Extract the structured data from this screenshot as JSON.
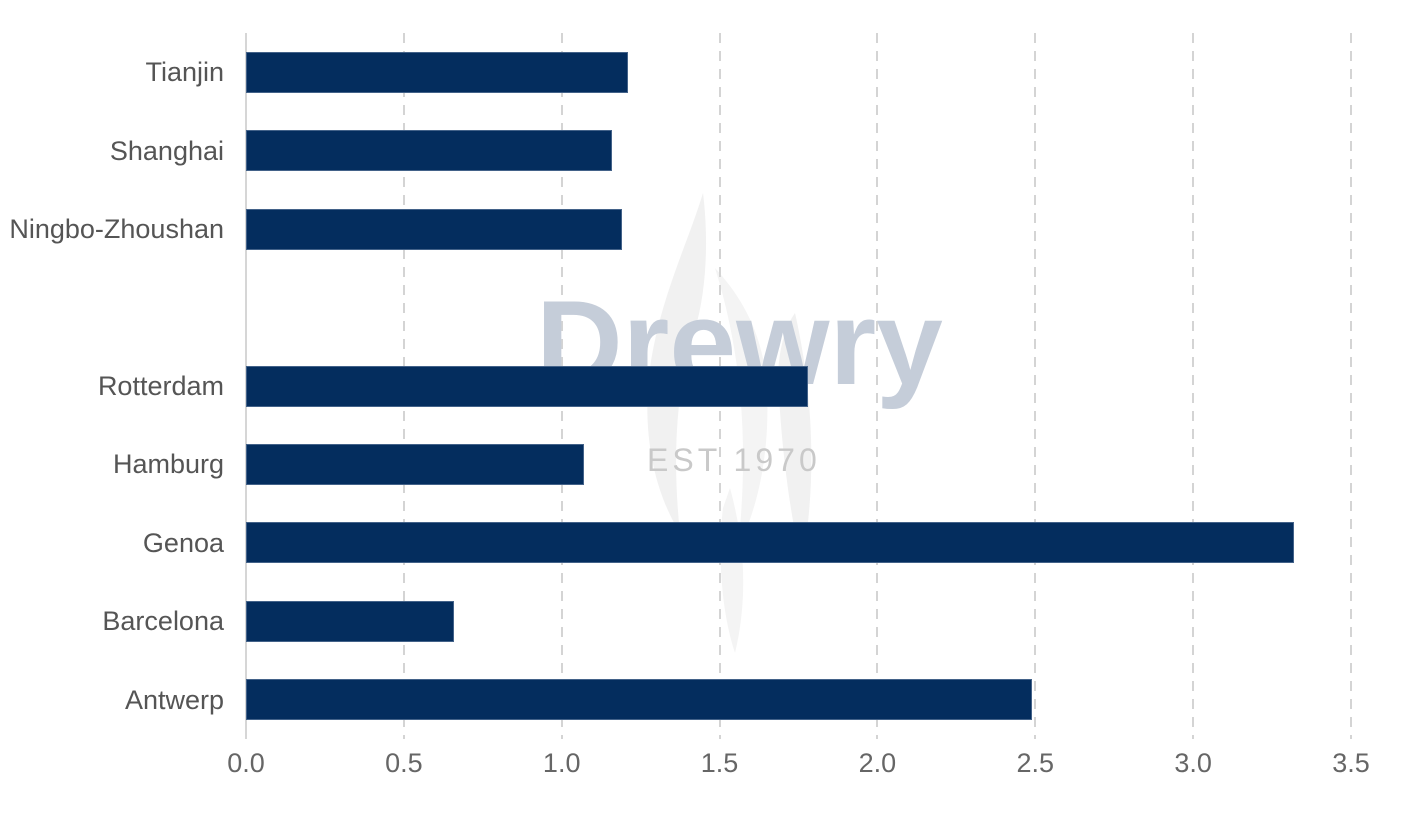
{
  "watermark": {
    "brand": "Drewry",
    "est": "EST 1970"
  },
  "chart_data": {
    "type": "bar",
    "orientation": "horizontal",
    "title": "",
    "xlabel": "",
    "ylabel": "",
    "categories": [
      "Tianjin",
      "Shanghai",
      "Ningbo-Zhoushan",
      "",
      "Rotterdam",
      "Hamburg",
      "Genoa",
      "Barcelona",
      "Antwerp"
    ],
    "values": [
      1.21,
      1.16,
      1.19,
      null,
      1.78,
      1.07,
      3.32,
      0.66,
      2.49
    ],
    "xlim": [
      0,
      3.5
    ],
    "xticks": [
      0,
      0.5,
      1,
      1.5,
      2,
      2.5,
      3,
      3.5
    ],
    "xtick_labels": [
      "0.0",
      "0.5",
      "1.0",
      "1.5",
      "2.0",
      "2.5",
      "3.0",
      "3.5"
    ],
    "grid": "vertical-dashed",
    "legend": "none",
    "colors": {
      "bar": "#042d5e",
      "gridline": "#d4d4d4",
      "axis_line": "#d6d6d6",
      "category_label": "#555555",
      "tick_label": "#666666",
      "watermark_brand": "#c5cdd9",
      "watermark_est": "#c9c9c9",
      "flame_light": "#f1f1f1",
      "flame_lighter": "#f4f4f4"
    }
  }
}
